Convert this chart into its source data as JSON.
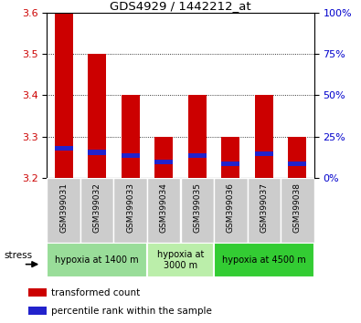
{
  "title": "GDS4929 / 1442212_at",
  "samples": [
    "GSM399031",
    "GSM399032",
    "GSM399033",
    "GSM399034",
    "GSM399035",
    "GSM399036",
    "GSM399037",
    "GSM399038"
  ],
  "red_tops": [
    3.6,
    3.5,
    3.4,
    3.3,
    3.4,
    3.3,
    3.4,
    3.3
  ],
  "blue_positions": [
    3.265,
    3.255,
    3.248,
    3.232,
    3.248,
    3.228,
    3.252,
    3.228
  ],
  "blue_heights": [
    0.012,
    0.012,
    0.012,
    0.012,
    0.012,
    0.012,
    0.012,
    0.012
  ],
  "ymin": 3.2,
  "ymax": 3.6,
  "yticks_left": [
    3.2,
    3.3,
    3.4,
    3.5,
    3.6
  ],
  "yticks_right": [
    0,
    25,
    50,
    75,
    100
  ],
  "bar_width": 0.55,
  "groups": [
    {
      "label": "hypoxia at 1400 m",
      "start": 0,
      "end": 3,
      "color": "#99dd99"
    },
    {
      "label": "hypoxia at\n3000 m",
      "start": 3,
      "end": 5,
      "color": "#bbeeaa"
    },
    {
      "label": "hypoxia at 4500 m",
      "start": 5,
      "end": 8,
      "color": "#33cc33"
    }
  ],
  "stress_label": "stress",
  "legend_red": "transformed count",
  "legend_blue": "percentile rank within the sample",
  "red_color": "#cc0000",
  "blue_color": "#2222cc",
  "tick_label_color_left": "#cc0000",
  "tick_label_color_right": "#0000cc",
  "title_color": "#000000",
  "bar_bottom": 3.2,
  "xtick_box_color": "#cccccc",
  "fig_bg": "#ffffff"
}
